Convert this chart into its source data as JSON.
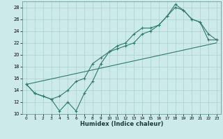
{
  "xlabel": "Humidex (Indice chaleur)",
  "bg_color": "#cceaea",
  "grid_color": "#aacfcf",
  "line_color": "#2d7a6a",
  "xlim": [
    -0.5,
    23.5
  ],
  "ylim": [
    10,
    29
  ],
  "xticks": [
    0,
    1,
    2,
    3,
    4,
    5,
    6,
    7,
    8,
    9,
    10,
    11,
    12,
    13,
    14,
    15,
    16,
    17,
    18,
    19,
    20,
    21,
    22,
    23
  ],
  "yticks": [
    10,
    12,
    14,
    16,
    18,
    20,
    22,
    24,
    26,
    28
  ],
  "line1_x": [
    0,
    1,
    2,
    3,
    4,
    5,
    6,
    7,
    8,
    9,
    10,
    11,
    12,
    13,
    14,
    15,
    16,
    17,
    18,
    19,
    20,
    21,
    22,
    23
  ],
  "line1_y": [
    15,
    13.5,
    13,
    12.5,
    10.5,
    12,
    10.5,
    13.5,
    15.5,
    18.5,
    20.5,
    21.5,
    22,
    23.5,
    24.5,
    24.5,
    25,
    26.5,
    28.5,
    27.5,
    26,
    25.5,
    23.5,
    22.5
  ],
  "line2_x": [
    0,
    1,
    2,
    3,
    4,
    5,
    6,
    7,
    8,
    9,
    10,
    11,
    12,
    13,
    14,
    15,
    16,
    17,
    18,
    19,
    20,
    21,
    22,
    23
  ],
  "line2_y": [
    15,
    13.5,
    13,
    12.5,
    13,
    14,
    15.5,
    16,
    18.5,
    19.5,
    20.5,
    21,
    21.5,
    22,
    23.5,
    24,
    25,
    26.5,
    28,
    27.5,
    26,
    25.5,
    22.5,
    22.5
  ],
  "line3_x": [
    0,
    23
  ],
  "line3_y": [
    15,
    22
  ]
}
